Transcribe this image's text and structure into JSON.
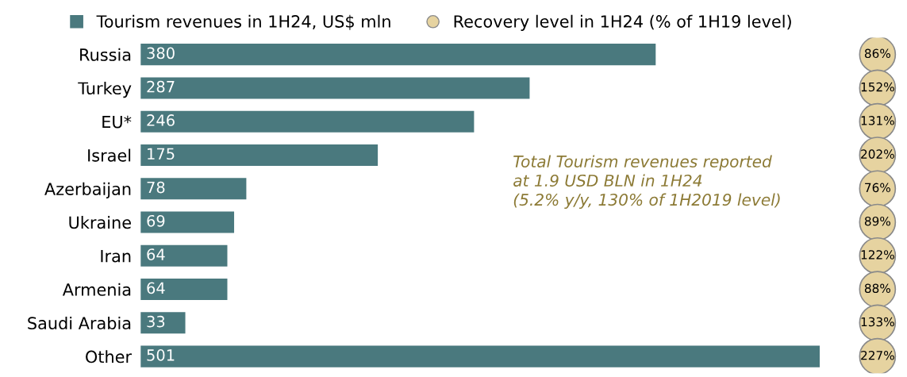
{
  "chart_data": [
    {
      "type": "bar",
      "orientation": "horizontal",
      "categories": [
        "Russia",
        "Turkey",
        "EU*",
        "Israel",
        "Azerbaijan",
        "Ukraine",
        "Iran",
        "Armenia",
        "Saudi Arabia",
        "Other"
      ],
      "series": [
        {
          "name": "Tourism revenues in 1H24, US$ mln",
          "color": "#4a797e",
          "values": [
            380,
            287,
            246,
            175,
            78,
            69,
            64,
            64,
            33,
            501
          ]
        }
      ],
      "tick_labels": "y",
      "data_labels": true,
      "grid": false,
      "legend": "top",
      "annotations": [
        "Total Tourism revenues reported\nat 1.9 USD BLN in 1H24\n(5.2% y/y, 130% of 1H2019 level)"
      ]
    },
    {
      "type": "other",
      "categories": [
        null,
        null,
        null,
        null,
        null,
        null,
        null,
        null,
        null,
        null
      ],
      "series": [
        {
          "name": "Recovery level in 1H24 (% of 1H19 level)",
          "color": "#e6d3a0",
          "values": [
            86,
            152,
            131,
            202,
            76,
            89,
            122,
            88,
            133,
            227
          ],
          "value_labels": [
            "86%",
            "152%",
            "131%",
            "202%",
            "76%",
            "89%",
            "122%",
            "88%",
            "133%",
            "227%"
          ]
        }
      ]
    }
  ]
}
